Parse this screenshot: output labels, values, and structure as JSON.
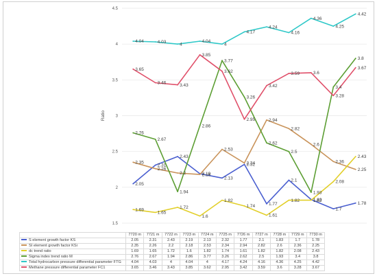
{
  "chart_data": {
    "type": "line",
    "ylabel": "Ratio",
    "ylim": [
      1.5,
      4.5
    ],
    "yticks": [
      "1.5",
      "2",
      "2.5",
      "3",
      "3.5",
      "4",
      "4.5"
    ],
    "categories": [
      "7720 m",
      "7721 m",
      "7722 m",
      "7723 m",
      "7724 m",
      "7725 m",
      "7726 m",
      "7727 m",
      "7728 m",
      "7729 m",
      "7730 m"
    ],
    "grid": true,
    "data_table": true,
    "series": [
      {
        "name": "S element growth factor KS",
        "color": "#4a5fd0",
        "values": [
          2.05,
          2.31,
          2.43,
          2.19,
          2.13,
          2.32,
          1.77,
          2.1,
          1.83,
          1.7,
          1.78
        ]
      },
      {
        "name": "SI element growth factor KSi",
        "color": "#c9935a",
        "values": [
          2.35,
          2.26,
          2.2,
          2.18,
          2.53,
          2.34,
          2.94,
          2.82,
          2.6,
          2.36,
          2.25
        ]
      },
      {
        "name": "dc trend ratio",
        "color": "#e2cf2a",
        "values": [
          1.69,
          1.65,
          1.72,
          1.6,
          1.82,
          1.74,
          1.61,
          1.82,
          1.82,
          2.08,
          2.43
        ]
      },
      {
        "name": "Sigma index trend ratio M",
        "color": "#5c9e33",
        "values": [
          2.76,
          2.67,
          1.94,
          2.86,
          3.77,
          3.26,
          2.62,
          2.5,
          1.93,
          3.4,
          3.8
        ]
      },
      {
        "name": "Total hydrocarbon pressure differential parameter FTG",
        "color": "#2ec8c8",
        "values": [
          4.04,
          4.03,
          4,
          4.04,
          4,
          4.17,
          4.24,
          4.16,
          4.36,
          4.25,
          4.42
        ]
      },
      {
        "name": "Methane pressure differential parameter FC1",
        "color": "#e0506a",
        "values": [
          3.65,
          3.46,
          3.43,
          3.85,
          3.62,
          2.95,
          3.42,
          3.59,
          3.6,
          3.28,
          3.67
        ]
      }
    ]
  }
}
